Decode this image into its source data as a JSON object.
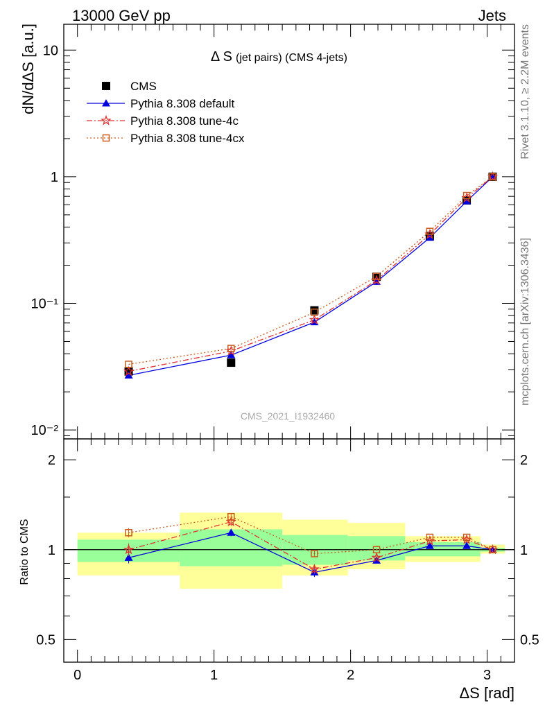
{
  "header": {
    "left": "13000 GeV pp",
    "right": "Jets"
  },
  "side_labels": {
    "rivet": "Rivet 3.1.10, ≥ 2.2M events",
    "mcplots": "mcplots.cern.ch [arXiv:1306.3436]"
  },
  "chart_data": [
    {
      "type": "line",
      "title_main": "Δ S",
      "title_sub": "(jet pairs) (CMS 4-jets)",
      "watermark": "CMS_2021_I1932460",
      "ylabel": "dN/dΔS [a.u.]",
      "yscale": "log",
      "ylim": [
        0.0085,
        16
      ],
      "xlim": [
        -0.1,
        3.2
      ],
      "y_ticks": [
        {
          "v": 10,
          "label": "10"
        },
        {
          "v": 1,
          "label": "1"
        },
        {
          "v": 0.1,
          "label": "10⁻¹"
        },
        {
          "v": 0.01,
          "label": "10⁻²"
        }
      ],
      "legend_position": "top-left",
      "x": [
        0.375,
        1.125,
        1.735,
        2.19,
        2.58,
        2.85,
        3.04
      ],
      "series": [
        {
          "name": "CMS",
          "style": "data",
          "color": "#000000",
          "values": [
            0.029,
            0.034,
            0.088,
            0.162,
            0.34,
            0.65,
            1.0
          ]
        },
        {
          "name": "Pythia 8.308 default",
          "style": "solid",
          "marker": "triangle",
          "color": "#0000dd",
          "values": [
            0.027,
            0.039,
            0.071,
            0.148,
            0.33,
            0.64,
            1.0
          ]
        },
        {
          "name": "Pythia 8.308 tune-4c",
          "style": "dashdot",
          "marker": "star",
          "color": "#e03030",
          "values": [
            0.029,
            0.042,
            0.074,
            0.152,
            0.35,
            0.68,
            1.0
          ]
        },
        {
          "name": "Pythia 8.308 tune-4cx",
          "style": "dotted",
          "marker": "open-square",
          "color": "#c85a1a",
          "values": [
            0.033,
            0.044,
            0.085,
            0.163,
            0.37,
            0.71,
            1.0
          ]
        }
      ]
    },
    {
      "type": "line",
      "ylabel": "Ratio to CMS",
      "xlabel": "ΔS [rad]",
      "yscale": "log",
      "ylim": [
        0.42,
        2.35
      ],
      "xlim": [
        -0.1,
        3.2
      ],
      "y_ticks": [
        {
          "v": 2,
          "label": "2"
        },
        {
          "v": 1,
          "label": "1"
        },
        {
          "v": 0.5,
          "label": "0.5"
        }
      ],
      "x_ticks": [
        {
          "v": 0,
          "label": "0"
        },
        {
          "v": 1,
          "label": "1"
        },
        {
          "v": 2,
          "label": "2"
        },
        {
          "v": 3,
          "label": "3"
        }
      ],
      "bands": [
        {
          "x0": 0.0,
          "x1": 0.75,
          "y_lo": 0.82,
          "y_hi": 1.14,
          "s_lo": 0.91,
          "s_hi": 1.08
        },
        {
          "x0": 0.75,
          "x1": 1.5,
          "y_lo": 0.74,
          "y_hi": 1.33,
          "s_lo": 0.88,
          "s_hi": 1.17
        },
        {
          "x0": 1.5,
          "x1": 1.98,
          "y_lo": 0.82,
          "y_hi": 1.26,
          "s_lo": 0.89,
          "s_hi": 1.12
        },
        {
          "x0": 1.98,
          "x1": 2.4,
          "y_lo": 0.86,
          "y_hi": 1.23,
          "s_lo": 0.92,
          "s_hi": 1.11
        },
        {
          "x0": 2.4,
          "x1": 2.95,
          "y_lo": 0.91,
          "y_hi": 1.11,
          "s_lo": 0.95,
          "s_hi": 1.06
        },
        {
          "x0": 2.95,
          "x1": 3.13,
          "y_lo": 0.97,
          "y_hi": 1.04,
          "s_lo": 0.985,
          "s_hi": 1.015
        }
      ],
      "x": [
        0.375,
        1.125,
        1.735,
        2.19,
        2.58,
        2.85,
        3.04
      ],
      "series": [
        {
          "name": "Pythia 8.308 default",
          "style": "solid",
          "marker": "triangle",
          "color": "#0000dd",
          "values": [
            0.94,
            1.14,
            0.84,
            0.92,
            1.03,
            1.03,
            1.0
          ],
          "errors": [
            0.04,
            0.03,
            0.03,
            0.015,
            0.01,
            0.01,
            0.005
          ]
        },
        {
          "name": "Pythia 8.308 tune-4c",
          "style": "dashdot",
          "marker": "star",
          "color": "#e03030",
          "values": [
            1.0,
            1.24,
            0.86,
            0.94,
            1.07,
            1.08,
            1.0
          ],
          "errors": [
            0.05,
            0.04,
            0.03,
            0.015,
            0.01,
            0.01,
            0.005
          ]
        },
        {
          "name": "Pythia 8.308 tune-4cx",
          "style": "dotted",
          "marker": "open-square",
          "color": "#c85a1a",
          "values": [
            1.14,
            1.29,
            0.97,
            1.0,
            1.1,
            1.1,
            1.0
          ],
          "errors": [
            0.04,
            0.03,
            0.02,
            0.01,
            0.01,
            0.01,
            0.005
          ]
        }
      ]
    }
  ]
}
